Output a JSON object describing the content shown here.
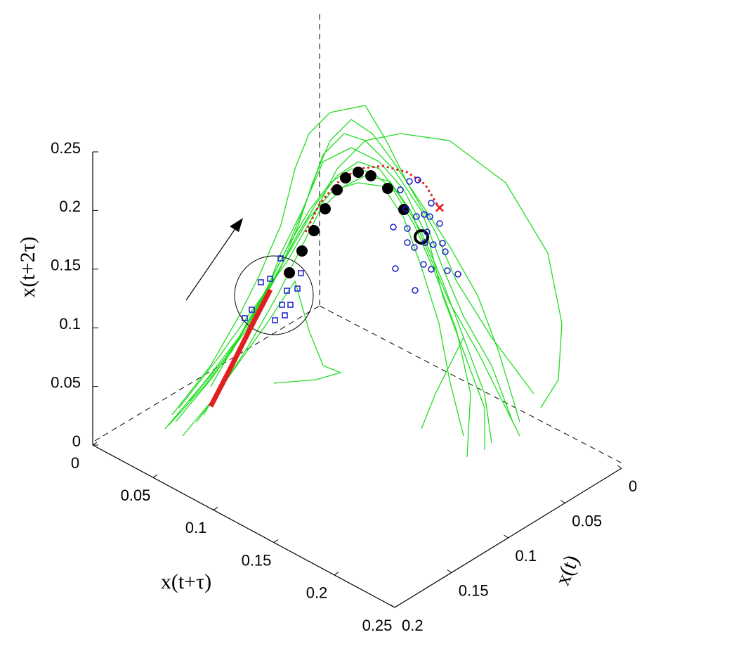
{
  "chart_data": {
    "type": "line3d",
    "xlabel": "x(t)",
    "ylabel": "x(t+τ)",
    "zlabel": "x(t+2τ)",
    "xlim": [
      0,
      0.2
    ],
    "ylim": [
      0,
      0.25
    ],
    "zlim": [
      0,
      0.25
    ],
    "xticks": [
      0,
      0.05,
      0.1,
      0.15,
      0.2
    ],
    "yticks": [
      0,
      0.05,
      0.1,
      0.15,
      0.2,
      0.25
    ],
    "zticks": [
      0,
      0.05,
      0.1,
      0.15,
      0.2,
      0.25
    ]
  }
}
